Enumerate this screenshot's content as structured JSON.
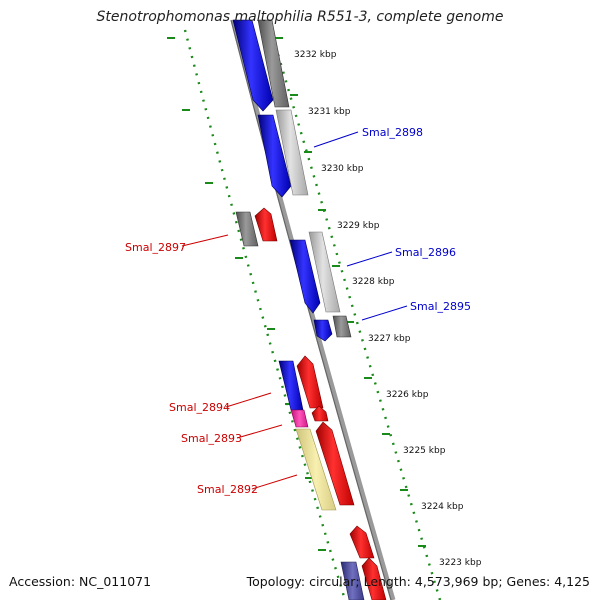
{
  "title": "Stenotrophomonas maltophilia R551-3, complete genome",
  "footer": {
    "accession": "Accession: NC_011071",
    "topology": "Topology: circular; Length: 4,573,969 bp; Genes: 4,125"
  },
  "colors": {
    "forward_cds": "#ff0000",
    "reverse_cds": "#0000ff",
    "backbone": "#888888",
    "ruler": "#1a8a1a",
    "gray_gene": "#8c8c8c",
    "light_gray_gene": "#c8c8c8",
    "magenta_gene": "#ff33aa",
    "yellow_gene": "#f0e68c"
  },
  "ticks": [
    "3232 kbp",
    "3231 kbp",
    "3230 kbp",
    "3229 kbp",
    "3228 kbp",
    "3227 kbp",
    "3226 kbp",
    "3225 kbp",
    "3224 kbp",
    "3223 kbp"
  ],
  "gene_labels": [
    {
      "text": "Smal_2898",
      "color": "#0000cc"
    },
    {
      "text": "Smal_2897",
      "color": "#cc0000"
    },
    {
      "text": "Smal_2896",
      "color": "#0000cc"
    },
    {
      "text": "Smal_2895",
      "color": "#0000cc"
    },
    {
      "text": "Smal_2894",
      "color": "#cc0000"
    },
    {
      "text": "Smal_2893",
      "color": "#cc0000"
    },
    {
      "text": "Smal_2892",
      "color": "#cc0000"
    }
  ]
}
